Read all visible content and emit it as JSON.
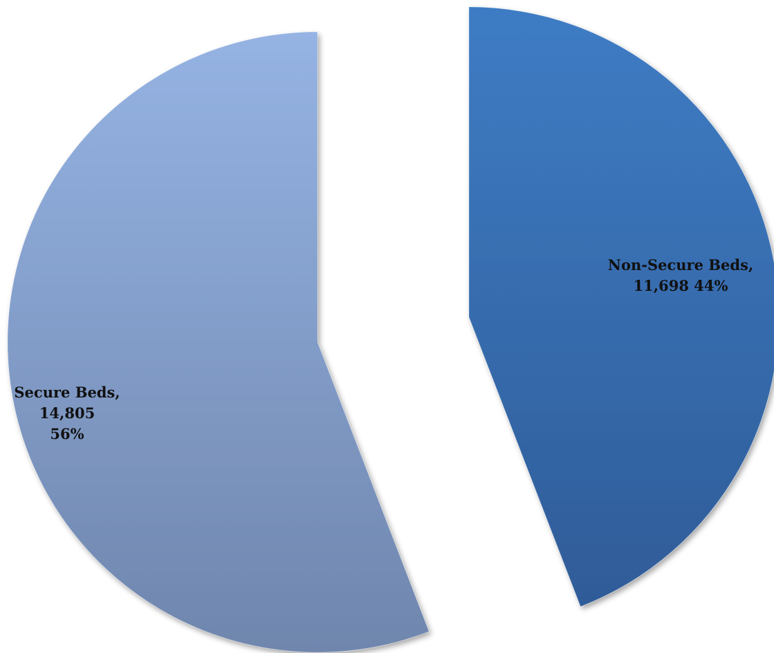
{
  "chart_data": {
    "type": "pie",
    "exploded": true,
    "start_angle_deg": 0,
    "direction": "clockwise",
    "slices": [
      {
        "name": "Non-Secure Beds",
        "value": 11698,
        "percent": 44,
        "label_lines": [
          "Non-Secure Beds,",
          "11,698 44%"
        ],
        "color_top": "#3e7cc4",
        "color_bottom": "#2f5c98"
      },
      {
        "name": "Secure Beds",
        "value": 14805,
        "percent": 56,
        "label_lines": [
          "Secure Beds,",
          "14,805",
          "56%"
        ],
        "color_top": "#95b3e3",
        "color_bottom": "#6f86ad"
      }
    ],
    "legend": "none",
    "title": ""
  }
}
